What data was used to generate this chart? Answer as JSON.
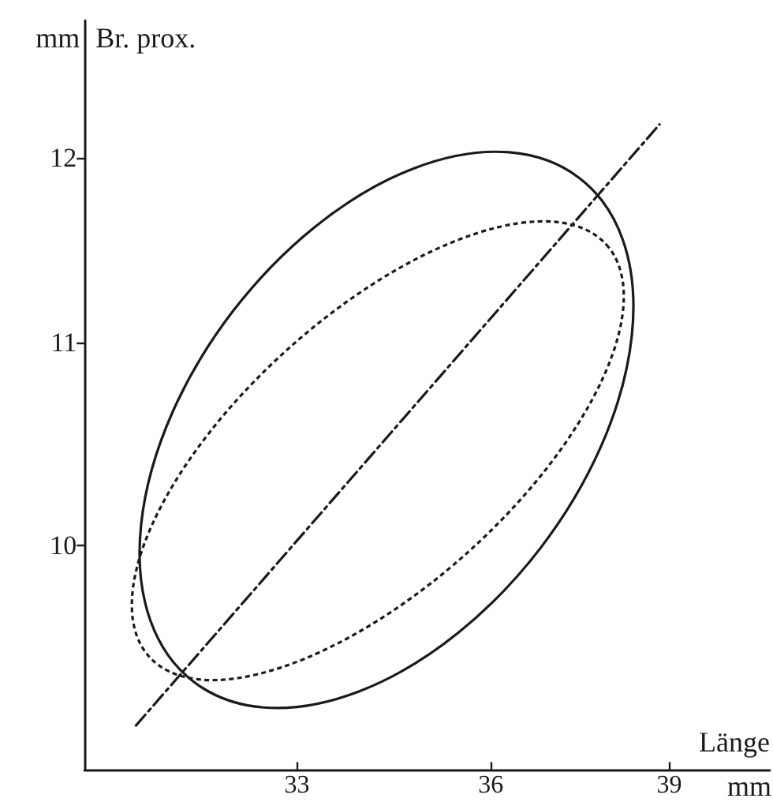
{
  "chart_data": {
    "type": "line",
    "xlabel": "Länge",
    "ylabel": "Br. prox.",
    "annotations": [
      "mm",
      "mm"
    ],
    "log": "xy",
    "xlim": [
      30,
      40.8
    ],
    "ylim": [
      9,
      12.8
    ],
    "xticks": [
      33,
      36,
      39
    ],
    "yticks": [
      10,
      11,
      12
    ],
    "grid": false,
    "marker": "none",
    "series": [
      {
        "color": "#1a1a1a",
        "line_style": "dashdot",
        "x": [
          30.7,
          38.83
        ],
        "values": [
          9.19,
          12.19
        ]
      }
    ]
  }
}
